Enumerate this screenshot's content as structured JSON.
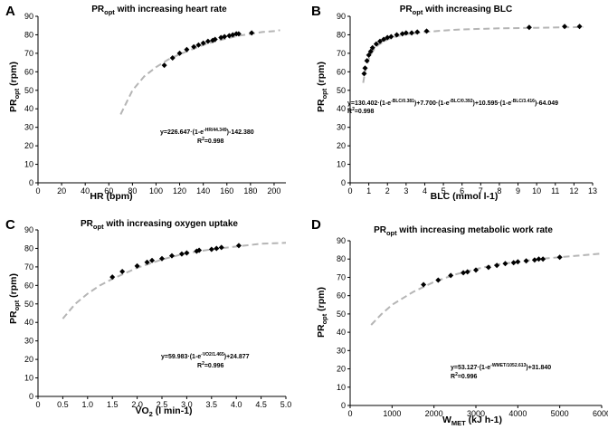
{
  "chart_data": [
    {
      "type": "scatter",
      "panel_letter": "A",
      "title": {
        "main": "PR",
        "sub": "opt",
        "rest": " with increasing heart rate"
      },
      "xlabel": {
        "text": "HR (bpm)"
      },
      "ylabel": {
        "main": "PR",
        "sub": "opt",
        "rest": " (rpm)"
      },
      "xlim": [
        0,
        210
      ],
      "ylim": [
        0,
        90
      ],
      "xticks": [
        "0",
        "20",
        "40",
        "60",
        "80",
        "100",
        "120",
        "140",
        "160",
        "180",
        "200"
      ],
      "yticks": [
        "0",
        "10",
        "20",
        "30",
        "40",
        "50",
        "60",
        "70",
        "80",
        "90"
      ],
      "points": {
        "x": [
          107,
          114,
          120,
          126,
          132,
          136,
          140,
          144,
          148,
          150,
          155,
          158,
          162,
          165,
          168,
          170,
          181
        ],
        "y": [
          63.5,
          67.5,
          70,
          72,
          73.5,
          74.5,
          75.5,
          76.5,
          77,
          77.5,
          78.5,
          79,
          79.5,
          80,
          80.5,
          80.5,
          81
        ]
      },
      "fit_curve": {
        "x": [
          70,
          80,
          90,
          100,
          110,
          120,
          130,
          140,
          150,
          160,
          170,
          180,
          190,
          200,
          205
        ],
        "y": [
          37,
          50,
          57.5,
          62.5,
          66.5,
          69.5,
          72,
          74.5,
          76.5,
          78,
          79.5,
          80.5,
          81.5,
          82,
          82.5
        ]
      },
      "equation": {
        "a": "y=226.647·(1-e",
        "a_sup": "-HR/44.349",
        "b": ")-142.380"
      },
      "r2": {
        "main": "R",
        "sup": "2",
        "rest": "=0.998"
      }
    },
    {
      "type": "scatter",
      "panel_letter": "B",
      "title": {
        "main": "PR",
        "sub": "opt",
        "rest": " with increasing BLC"
      },
      "xlabel": {
        "text": "BLC (mmol l-1)"
      },
      "ylabel": {
        "main": "PR",
        "sub": "opt",
        "rest": " (rpm)"
      },
      "xlim": [
        0,
        13
      ],
      "ylim": [
        0,
        90
      ],
      "xticks": [
        "0",
        "1",
        "2",
        "3",
        "4",
        "5",
        "6",
        "7",
        "8",
        "9",
        "10",
        "11",
        "12",
        "13"
      ],
      "yticks": [
        "0",
        "10",
        "20",
        "30",
        "40",
        "50",
        "60",
        "70",
        "80",
        "90"
      ],
      "points": {
        "x": [
          0.75,
          0.8,
          0.9,
          1.0,
          1.1,
          1.2,
          1.4,
          1.6,
          1.8,
          2.0,
          2.2,
          2.5,
          2.8,
          3.0,
          3.3,
          3.6,
          4.1,
          9.6,
          11.5,
          12.3
        ],
        "y": [
          59,
          62,
          66,
          69,
          71,
          73,
          75,
          76.5,
          77.5,
          78.5,
          79,
          80,
          80.5,
          81,
          81,
          81.5,
          82,
          84,
          84.5,
          84.5
        ]
      },
      "fit_curve": {
        "x": [
          0.7,
          0.8,
          1.0,
          1.2,
          1.5,
          2.0,
          2.5,
          3.0,
          4.0,
          5.0,
          6.0,
          8.0,
          10.0,
          12.5
        ],
        "y": [
          54,
          60,
          67,
          71,
          74.5,
          77.5,
          79.2,
          80.2,
          81.5,
          82.3,
          82.9,
          83.5,
          83.8,
          84.2
        ]
      },
      "equation": {
        "a": "y=130.402·(1-e",
        "a_sup": "-BLC/0.381",
        "b": ")+7.700·(1-e",
        "b_sup": "-BLC/0.392",
        "c": ")+10.595·(1-e",
        "c_sup": "-BLC/3.416",
        "d": ")-64.049"
      },
      "r2": {
        "main": "R",
        "sup": "2",
        "rest": "=0.998"
      }
    },
    {
      "type": "scatter",
      "panel_letter": "C",
      "title": {
        "main": "PR",
        "sub": "opt",
        "rest": " with increasing oxygen uptake"
      },
      "xlabel": {
        "main": "V̇O",
        "sub": "2",
        "rest": " (l min-1)"
      },
      "ylabel": {
        "main": "PR",
        "sub": "opt",
        "rest": " (rpm)"
      },
      "xlim": [
        0,
        5
      ],
      "ylim": [
        0,
        90
      ],
      "xticks": [
        "0",
        "0.5",
        "1.0",
        "1.5",
        "2.0",
        "2.5",
        "3.0",
        "3.5",
        "4.0",
        "4.5",
        "5.0"
      ],
      "yticks": [
        "0",
        "10",
        "20",
        "30",
        "40",
        "50",
        "60",
        "70",
        "80",
        "90"
      ],
      "points": {
        "x": [
          1.5,
          1.7,
          2.0,
          2.2,
          2.3,
          2.5,
          2.7,
          2.9,
          3.0,
          3.2,
          3.25,
          3.5,
          3.6,
          3.7,
          4.05
        ],
        "y": [
          64.5,
          67.5,
          70.5,
          72.5,
          73.5,
          74.5,
          76,
          77,
          77.5,
          78.5,
          79,
          79.5,
          80,
          80.5,
          81.5
        ]
      },
      "fit_curve": {
        "x": [
          0.5,
          0.75,
          1.0,
          1.25,
          1.5,
          2.0,
          2.5,
          3.0,
          3.5,
          4.0,
          4.5,
          5.0
        ],
        "y": [
          42,
          50,
          55.5,
          60,
          63.5,
          69.5,
          74,
          77.5,
          79.5,
          81,
          82.5,
          83
        ]
      },
      "equation": {
        "a": "y=59.983·(1-e",
        "a_sup": "-VO2/1.465",
        "b": ")+24.877"
      },
      "r2": {
        "main": "R",
        "sup": "2",
        "rest": "=0.996"
      }
    },
    {
      "type": "scatter",
      "panel_letter": "D",
      "title": {
        "main": "PR",
        "sub": "opt",
        "rest": " with increasing metabolic work rate"
      },
      "xlabel": {
        "main": "W",
        "sub": "MET",
        "rest": " (kJ h-1)"
      },
      "ylabel": {
        "main": "PR",
        "sub": "opt",
        "rest": " (rpm)"
      },
      "xlim": [
        0,
        6000
      ],
      "ylim": [
        0,
        90
      ],
      "xticks": [
        "0",
        "1000",
        "2000",
        "3000",
        "4000",
        "5000",
        "6000"
      ],
      "yticks": [
        "0",
        "10",
        "20",
        "30",
        "40",
        "50",
        "60",
        "70",
        "80",
        "90"
      ],
      "points": {
        "x": [
          1750,
          2100,
          2400,
          2700,
          2800,
          3000,
          3300,
          3500,
          3700,
          3900,
          4000,
          4200,
          4400,
          4500,
          4600,
          5000
        ],
        "y": [
          66,
          68.5,
          71,
          72.5,
          73,
          74,
          75.5,
          76.5,
          77.5,
          78,
          78.5,
          79,
          79.5,
          80,
          80,
          81
        ]
      },
      "fit_curve": {
        "x": [
          500,
          750,
          1000,
          1500,
          2000,
          2500,
          3000,
          3500,
          4000,
          4500,
          5000,
          5500,
          6000
        ],
        "y": [
          44,
          50,
          55,
          62,
          67.5,
          71.5,
          74.5,
          77,
          78.5,
          80,
          81,
          82,
          83
        ]
      },
      "equation": {
        "a": "y=53.127·(1-e",
        "a_sup": "-WMET/1052.613",
        "b": ")+31.840"
      },
      "r2": {
        "main": "R",
        "sup": "2",
        "rest": "=0.996"
      }
    }
  ]
}
